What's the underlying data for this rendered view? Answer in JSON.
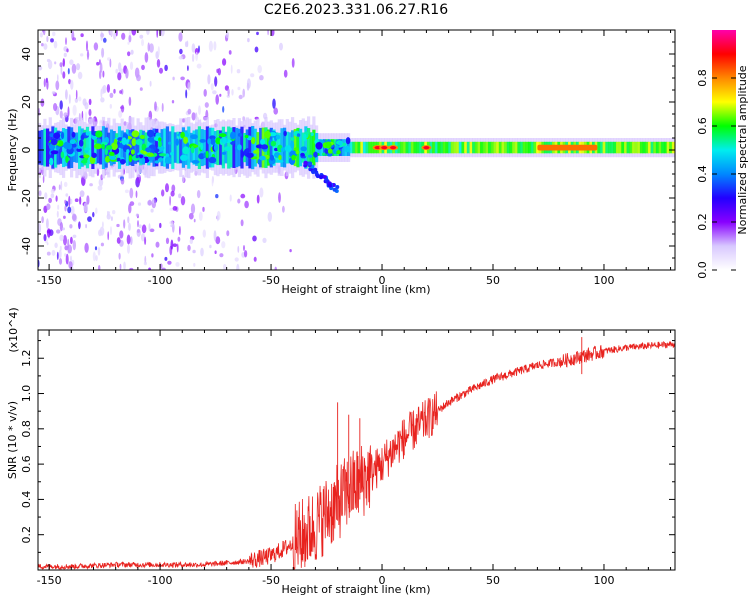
{
  "title": "C2E6.2023.331.06.27.R16",
  "chart_data": [
    {
      "type": "heatmap",
      "name": "spectrogram",
      "xlabel": "Height of straight line (km)",
      "ylabel": "Frequency (Hz)",
      "xlim": [
        -155,
        132
      ],
      "ylim": [
        -50,
        50
      ],
      "xticks": [
        -150,
        -100,
        -50,
        0,
        50,
        100
      ],
      "yticks": [
        -40,
        -20,
        0,
        20,
        40
      ],
      "colorbar": {
        "label": "Normalized spectral amplitude",
        "range": [
          0,
          1
        ],
        "ticks": [
          0.0,
          0.2,
          0.4,
          0.6,
          0.8
        ],
        "colors": [
          "#ffffff",
          "#d8c8ff",
          "#8800ff",
          "#2200ff",
          "#0088ff",
          "#00eeee",
          "#00ff00",
          "#ffff00",
          "#ff8800",
          "#ff0000",
          "#ff00aa"
        ]
      },
      "features": {
        "main_band_center_hz": 1,
        "main_band_halfwidth_hz": 5,
        "noisy_region_x_range": [
          -155,
          -60
        ],
        "peak_spots_x": [
          -2,
          1,
          5,
          20,
          75,
          80,
          88,
          93
        ]
      }
    },
    {
      "type": "line",
      "name": "snr",
      "xlabel": "Height of straight line (km)",
      "ylabel": "SNR (10 * v/v)",
      "yexponent": "(x10^4)",
      "xlim": [
        -155,
        132
      ],
      "ylim": [
        0,
        1.36
      ],
      "xticks": [
        -150,
        -100,
        -50,
        0,
        50,
        100
      ],
      "yticks": [
        0.2,
        0.4,
        0.6,
        0.8,
        1.0,
        1.2
      ],
      "series": [
        {
          "name": "SNR",
          "color": "#e8221e",
          "x": [
            -155,
            -140,
            -120,
            -100,
            -80,
            -70,
            -60,
            -50,
            -40,
            -30,
            -25,
            -20,
            -15,
            -10,
            -5,
            0,
            5,
            10,
            15,
            20,
            25,
            30,
            40,
            50,
            60,
            70,
            80,
            90,
            100,
            110,
            120,
            132
          ],
          "y": [
            0.02,
            0.02,
            0.03,
            0.03,
            0.03,
            0.04,
            0.05,
            0.08,
            0.15,
            0.25,
            0.32,
            0.38,
            0.45,
            0.5,
            0.55,
            0.6,
            0.68,
            0.75,
            0.8,
            0.85,
            0.9,
            0.95,
            1.02,
            1.08,
            1.12,
            1.16,
            1.18,
            1.21,
            1.24,
            1.26,
            1.27,
            1.28
          ]
        }
      ],
      "spikes": [
        {
          "x": -20,
          "y": 0.95
        },
        {
          "x": -15,
          "y": 0.88
        },
        {
          "x": -10,
          "y": 0.86
        },
        {
          "x": 10,
          "y": 0.85
        },
        {
          "x": 90,
          "y": 1.32
        }
      ]
    }
  ]
}
